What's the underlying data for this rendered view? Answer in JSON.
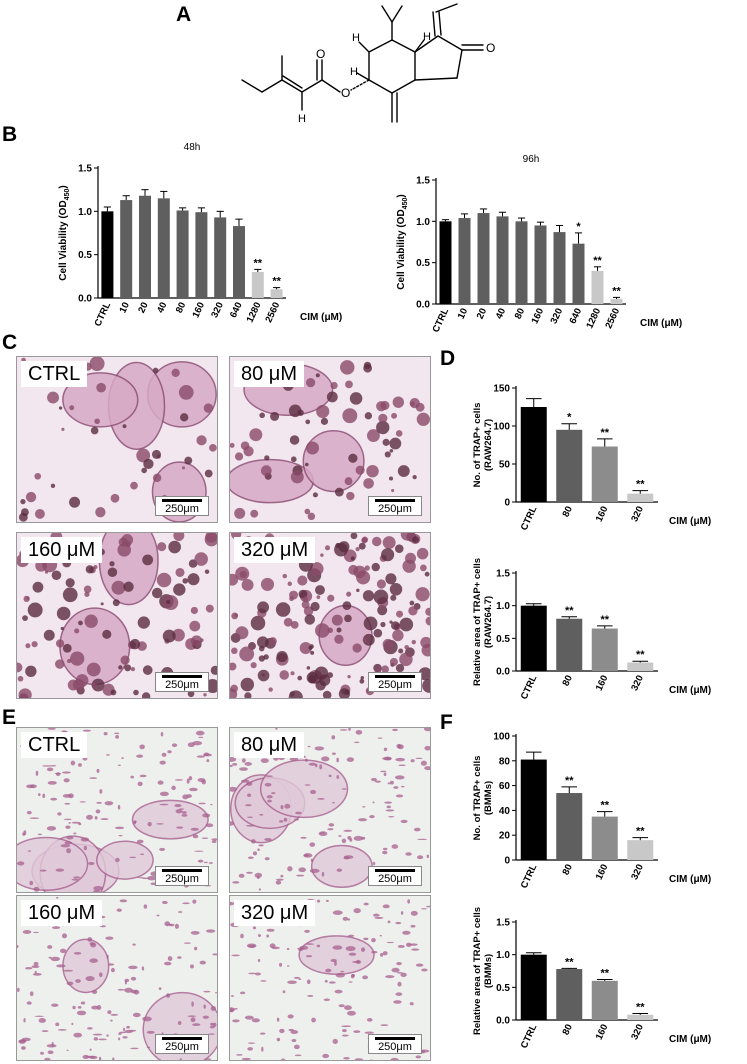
{
  "panels": {
    "A": "A",
    "B": "B",
    "C": "C",
    "D": "D",
    "E": "E",
    "F": "F"
  },
  "structure": {
    "atom_O_ester": "O",
    "atom_O_ether": "O",
    "atom_O_ketone": "O",
    "atom_H1": "H",
    "atom_H2": "H",
    "atom_H3": "H",
    "atom_H4": "H"
  },
  "micrographs": {
    "C": [
      {
        "label": "CTRL",
        "scale": "250μm"
      },
      {
        "label": "80 μM",
        "scale": "250μm"
      },
      {
        "label": "160 μM",
        "scale": "250μm"
      },
      {
        "label": "320 μM",
        "scale": "250μm"
      }
    ],
    "E": [
      {
        "label": "CTRL",
        "scale": "250μm"
      },
      {
        "label": "80 μM",
        "scale": "250μm"
      },
      {
        "label": "160 μM",
        "scale": "250μm"
      },
      {
        "label": "320 μM",
        "scale": "250μm"
      }
    ]
  },
  "colors": {
    "black": "#000000",
    "dark_gray": "#5f5f5f",
    "mid_gray": "#8c8c8c",
    "light_gray": "#c8c8c8",
    "stain_purple": "#a8608f",
    "stain_dark": "#5a2c3e"
  },
  "chart_data": [
    {
      "id": "B48",
      "type": "bar",
      "title": "48h",
      "ylabel": "Cell Viability (OD",
      "ylabel_sub": "450",
      "ylabel_end": ")",
      "xaxis_label": "CIM (μM)",
      "categories": [
        "CTRL",
        "10",
        "20",
        "40",
        "80",
        "160",
        "320",
        "640",
        "1280",
        "2560"
      ],
      "values": [
        1.0,
        1.13,
        1.18,
        1.15,
        1.01,
        0.99,
        0.93,
        0.83,
        0.3,
        0.1
      ],
      "errors": [
        0.05,
        0.05,
        0.07,
        0.08,
        0.03,
        0.05,
        0.07,
        0.08,
        0.03,
        0.02
      ],
      "colors": [
        "#000000",
        "#5f5f5f",
        "#5f5f5f",
        "#5f5f5f",
        "#5f5f5f",
        "#5f5f5f",
        "#5f5f5f",
        "#5f5f5f",
        "#c8c8c8",
        "#c8c8c8"
      ],
      "significance": [
        "",
        "",
        "",
        "",
        "",
        "",
        "",
        "",
        "**",
        "**"
      ],
      "ylim": [
        0,
        1.5
      ],
      "yticks": [
        0.0,
        0.5,
        1.0,
        1.5
      ],
      "ytick_labels": [
        "0.0",
        "0.5",
        "1.0",
        "1.5"
      ]
    },
    {
      "id": "B96",
      "type": "bar",
      "title": "96h",
      "ylabel": "Cell Viability (OD",
      "ylabel_sub": "450",
      "ylabel_end": ")",
      "xaxis_label": "CIM (μM)",
      "categories": [
        "CTRL",
        "10",
        "20",
        "40",
        "80",
        "160",
        "320",
        "640",
        "1280",
        "2560"
      ],
      "values": [
        1.0,
        1.04,
        1.1,
        1.06,
        1.0,
        0.95,
        0.87,
        0.73,
        0.4,
        0.06
      ],
      "errors": [
        0.02,
        0.05,
        0.05,
        0.05,
        0.04,
        0.04,
        0.08,
        0.13,
        0.05,
        0.02
      ],
      "colors": [
        "#000000",
        "#5f5f5f",
        "#5f5f5f",
        "#5f5f5f",
        "#5f5f5f",
        "#5f5f5f",
        "#5f5f5f",
        "#5f5f5f",
        "#c8c8c8",
        "#c8c8c8"
      ],
      "significance": [
        "",
        "",
        "",
        "",
        "",
        "",
        "",
        "*",
        "**",
        "**"
      ],
      "ylim": [
        0,
        1.5
      ],
      "yticks": [
        0.0,
        0.5,
        1.0,
        1.5
      ],
      "ytick_labels": [
        "0.0",
        "0.5",
        "1.0",
        "1.5"
      ]
    },
    {
      "id": "D1",
      "type": "bar",
      "ylabel_lines": [
        "No. of TRAP+ cells",
        "(RAW264.7)"
      ],
      "xaxis_label": "CIM (μM)",
      "categories": [
        "CTRL",
        "80",
        "160",
        "320"
      ],
      "values": [
        125,
        95,
        73,
        11
      ],
      "errors": [
        11,
        8,
        10,
        4
      ],
      "colors": [
        "#000000",
        "#5f5f5f",
        "#8c8c8c",
        "#c8c8c8"
      ],
      "significance": [
        "",
        "*",
        "**",
        "**"
      ],
      "ylim": [
        0,
        150
      ],
      "yticks": [
        0,
        50,
        100,
        150
      ],
      "ytick_labels": [
        "0",
        "50",
        "100",
        "150"
      ]
    },
    {
      "id": "D2",
      "type": "bar",
      "ylabel_lines": [
        "Relative area of TRAP+ cells",
        "(RAW264.7)"
      ],
      "xaxis_label": "CIM (μM)",
      "categories": [
        "CTRL",
        "80",
        "160",
        "320"
      ],
      "values": [
        1.0,
        0.8,
        0.65,
        0.13
      ],
      "errors": [
        0.03,
        0.03,
        0.04,
        0.02
      ],
      "colors": [
        "#000000",
        "#5f5f5f",
        "#8c8c8c",
        "#c8c8c8"
      ],
      "significance": [
        "",
        "**",
        "**",
        "**"
      ],
      "ylim": [
        0,
        1.5
      ],
      "yticks": [
        0.0,
        0.5,
        1.0,
        1.5
      ],
      "ytick_labels": [
        "0.0",
        "0.5",
        "1.0",
        "1.5"
      ]
    },
    {
      "id": "F1",
      "type": "bar",
      "ylabel_lines": [
        "No. of TRAP+ cells",
        "(BMMs)"
      ],
      "xaxis_label": "CIM (μM)",
      "categories": [
        "CTRL",
        "80",
        "160",
        "320"
      ],
      "values": [
        81,
        54,
        35,
        16
      ],
      "errors": [
        6,
        5,
        4,
        2
      ],
      "colors": [
        "#000000",
        "#5f5f5f",
        "#8c8c8c",
        "#c8c8c8"
      ],
      "significance": [
        "",
        "**",
        "**",
        "**"
      ],
      "ylim": [
        0,
        100
      ],
      "yticks": [
        0,
        20,
        40,
        60,
        80,
        100
      ],
      "ytick_labels": [
        "0",
        "20",
        "40",
        "60",
        "80",
        "100"
      ]
    },
    {
      "id": "F2",
      "type": "bar",
      "ylabel_lines": [
        "Relative area of TRAP+ cells",
        "(BMMs)"
      ],
      "xaxis_label": "CIM (μM)",
      "categories": [
        "CTRL",
        "80",
        "160",
        "320"
      ],
      "values": [
        1.0,
        0.78,
        0.6,
        0.08
      ],
      "errors": [
        0.03,
        0.01,
        0.02,
        0.02
      ],
      "colors": [
        "#000000",
        "#5f5f5f",
        "#8c8c8c",
        "#c8c8c8"
      ],
      "significance": [
        "",
        "**",
        "**",
        "**"
      ],
      "ylim": [
        0,
        1.5
      ],
      "yticks": [
        0.0,
        0.5,
        1.0,
        1.5
      ],
      "ytick_labels": [
        "0.0",
        "0.5",
        "1.0",
        "1.5"
      ]
    }
  ]
}
